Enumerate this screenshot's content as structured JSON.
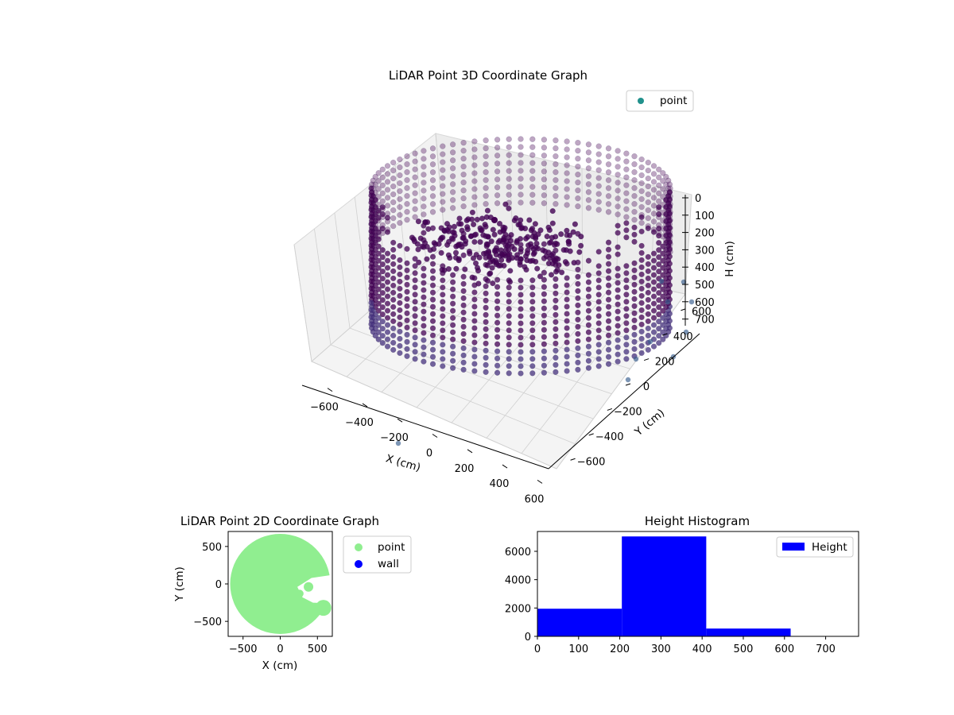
{
  "chart_data": [
    {
      "type": "scatter",
      "projection": "3d",
      "title": "LiDAR Point 3D Coordinate Graph",
      "xlabel": "X (cm)",
      "ylabel": "Y (cm)",
      "zlabel": "H (cm)",
      "xlim": [
        -700,
        700
      ],
      "ylim": [
        -700,
        700
      ],
      "zlim": [
        780,
        0
      ],
      "xticks": [
        "−600",
        "−400",
        "−200",
        "0",
        "200",
        "400",
        "600"
      ],
      "yticks": [
        "−600",
        "−400",
        "−200",
        "0",
        "200",
        "400",
        "600"
      ],
      "zticks": [
        "0",
        "100",
        "200",
        "300",
        "400",
        "500",
        "600",
        "700"
      ],
      "legend": [
        {
          "label": "point",
          "color": "#21918c"
        }
      ],
      "legend_position": "upper right",
      "grid": true,
      "colormap": "viridis",
      "series": [
        {
          "name": "point",
          "description_of_shape": "points arranged on a ring (wall) of radius about 620 cm spanning heights ~0-600 cm, plus an inner cluster near the centre",
          "wall_radius": 620,
          "wall_height_range": [
            0,
            600
          ],
          "center_cluster_height_range": [
            0,
            400
          ]
        }
      ]
    },
    {
      "type": "scatter",
      "title": "LiDAR Point 2D Coordinate Graph",
      "xlabel": "X (cm)",
      "ylabel": "Y (cm)",
      "xlim": [
        -700,
        700
      ],
      "ylim": [
        -700,
        700
      ],
      "xticks": [
        "−500",
        "0",
        "500"
      ],
      "yticks": [
        "−500",
        "0",
        "500"
      ],
      "legend": [
        {
          "label": "point",
          "color": "#90ee90"
        },
        {
          "label": "wall",
          "color": "#0000ff"
        }
      ],
      "legend_position": "outside right",
      "series": [
        {
          "name": "point",
          "color": "#90ee90",
          "shape": "filled disc of radius ~620 cm with a notch on the right side"
        },
        {
          "name": "wall",
          "color": "#0000ff",
          "values": []
        }
      ]
    },
    {
      "type": "bar",
      "subtype": "histogram",
      "title": "Height Histogram",
      "xlim": [
        0,
        780
      ],
      "ylim": [
        0,
        7400
      ],
      "xticks": [
        "0",
        "100",
        "200",
        "300",
        "400",
        "500",
        "600",
        "700"
      ],
      "yticks": [
        "0",
        "2000",
        "4000",
        "6000"
      ],
      "legend": [
        {
          "label": "Height",
          "color": "#0000ff"
        }
      ],
      "legend_position": "upper right",
      "series": [
        {
          "name": "Height",
          "color": "#0000ff",
          "bins": [
            [
              0,
              205,
              1950
            ],
            [
              205,
              410,
              7050
            ],
            [
              410,
              615,
              550
            ]
          ]
        }
      ]
    }
  ]
}
